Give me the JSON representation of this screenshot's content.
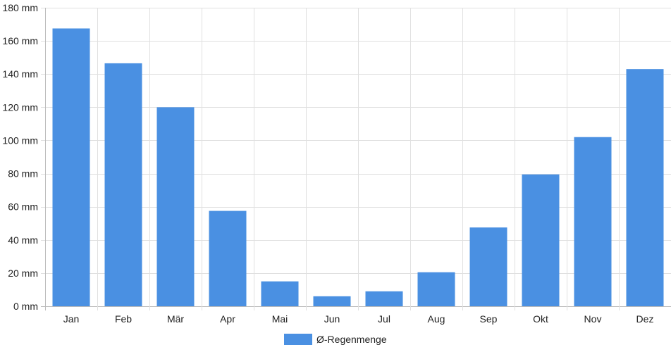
{
  "chart_data": {
    "type": "bar",
    "categories": [
      "Jan",
      "Feb",
      "Mär",
      "Apr",
      "Mai",
      "Jun",
      "Jul",
      "Aug",
      "Sep",
      "Okt",
      "Nov",
      "Dez"
    ],
    "series": [
      {
        "name": "Ø-Regenmenge",
        "values": [
          167.5,
          146.5,
          120,
          57.5,
          15,
          6,
          9,
          20.5,
          47.5,
          79.5,
          102,
          143
        ]
      }
    ],
    "yticks": [
      "0 mm",
      "20 mm",
      "40 mm",
      "60 mm",
      "80 mm",
      "100 mm",
      "120 mm",
      "140 mm",
      "160 mm",
      "180 mm"
    ],
    "ylim": [
      0,
      180
    ],
    "yunit": "mm",
    "grid": true,
    "legend_position": "bottom",
    "colors": {
      "bar": "#4a90e2",
      "grid": "#e0e0e0",
      "axis": "#bbbbbb",
      "text": "#222222"
    }
  }
}
